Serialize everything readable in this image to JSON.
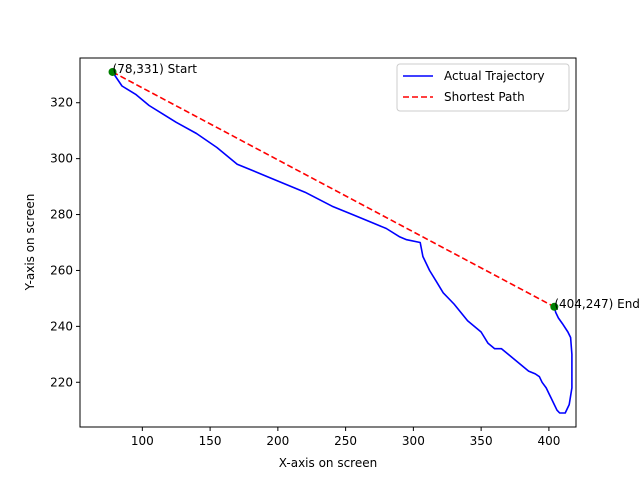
{
  "chart_data": {
    "type": "line",
    "title": "",
    "xlabel": "X-axis on screen",
    "ylabel": "Y-axis on screen",
    "xlim": [
      54,
      420
    ],
    "ylim": [
      204,
      336
    ],
    "xticks": [
      100,
      150,
      200,
      250,
      300,
      350,
      400
    ],
    "yticks": [
      220,
      240,
      260,
      280,
      300,
      320
    ],
    "grid": false,
    "legend_position": "top-right",
    "series": [
      {
        "name": "Actual Trajectory",
        "style": "solid",
        "color": "#0000ff",
        "points": [
          [
            78,
            331
          ],
          [
            85,
            326
          ],
          [
            95,
            323
          ],
          [
            105,
            319
          ],
          [
            115,
            316
          ],
          [
            125,
            313
          ],
          [
            140,
            309
          ],
          [
            155,
            304
          ],
          [
            170,
            298
          ],
          [
            195,
            293
          ],
          [
            220,
            288
          ],
          [
            240,
            283
          ],
          [
            255,
            280
          ],
          [
            270,
            277
          ],
          [
            280,
            275
          ],
          [
            290,
            272
          ],
          [
            295,
            271
          ],
          [
            305,
            270
          ],
          [
            307,
            265
          ],
          [
            312,
            260
          ],
          [
            317,
            256
          ],
          [
            322,
            252
          ],
          [
            330,
            248
          ],
          [
            340,
            242
          ],
          [
            350,
            238
          ],
          [
            355,
            234
          ],
          [
            360,
            232
          ],
          [
            365,
            232
          ],
          [
            370,
            230
          ],
          [
            375,
            228
          ],
          [
            380,
            226
          ],
          [
            385,
            224
          ],
          [
            390,
            223
          ],
          [
            393,
            222
          ],
          [
            395,
            220
          ],
          [
            398,
            218
          ],
          [
            400,
            216
          ],
          [
            402,
            214
          ],
          [
            404,
            212
          ],
          [
            406,
            210
          ],
          [
            408,
            209
          ],
          [
            412,
            209
          ],
          [
            415,
            212
          ],
          [
            417,
            218
          ],
          [
            417,
            230
          ],
          [
            416,
            236
          ],
          [
            414,
            238
          ],
          [
            410,
            241
          ],
          [
            407,
            243
          ],
          [
            405,
            245
          ],
          [
            404,
            247
          ]
        ]
      },
      {
        "name": "Shortest Path",
        "style": "dashed",
        "color": "#ff0000",
        "points": [
          [
            78,
            331
          ],
          [
            404,
            247
          ]
        ]
      }
    ],
    "markers": [
      {
        "x": 78,
        "y": 331,
        "color": "#008000",
        "label": "(78,331) Start"
      },
      {
        "x": 404,
        "y": 247,
        "color": "#008000",
        "label": "(404,247) End"
      }
    ]
  }
}
